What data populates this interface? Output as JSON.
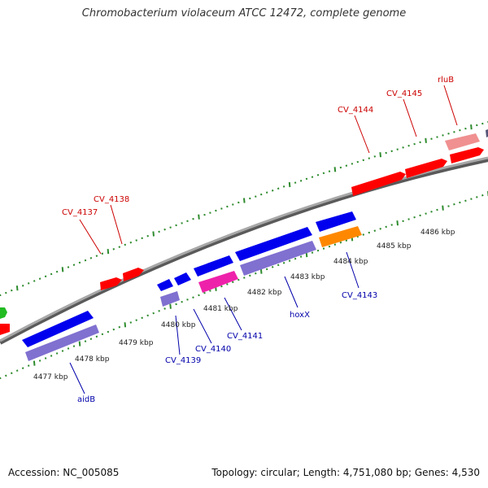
{
  "title": "Chromobacterium violaceum ATCC 12472, complete genome",
  "footer": {
    "accession": "Accession: NC_005085",
    "stats": "Topology: circular; Length: 4,751,080 bp; Genes: 4,530"
  },
  "colors": {
    "backbone": "#8a8a8a",
    "tick": "#2e8b2e",
    "forward_gene": "#ff0000",
    "forward_pseudo": "#f09090",
    "reverse_gene": "#0000ee",
    "reverse_rna": "#8070d0",
    "reverse_pink": "#ee22aa",
    "reverse_orange": "#ff8800",
    "green_gene": "#22bb22",
    "label_forward": "#cc0000",
    "label_reverse": "#0000aa",
    "scale_label": "#222222"
  },
  "scale_labels": [
    "4477 kbp",
    "4478 kbp",
    "4479 kbp",
    "4480 kbp",
    "4481 kbp",
    "4482 kbp",
    "4483 kbp",
    "4484 kbp",
    "4485 kbp",
    "4486 kbp"
  ],
  "forward_labels": [
    "CV_4137",
    "CV_4138",
    "CV_4144",
    "CV_4145",
    "rluB"
  ],
  "reverse_labels": [
    "aidB",
    "CV_4139",
    "CV_4140",
    "CV_4141",
    "hoxX",
    "CV_4143"
  ]
}
